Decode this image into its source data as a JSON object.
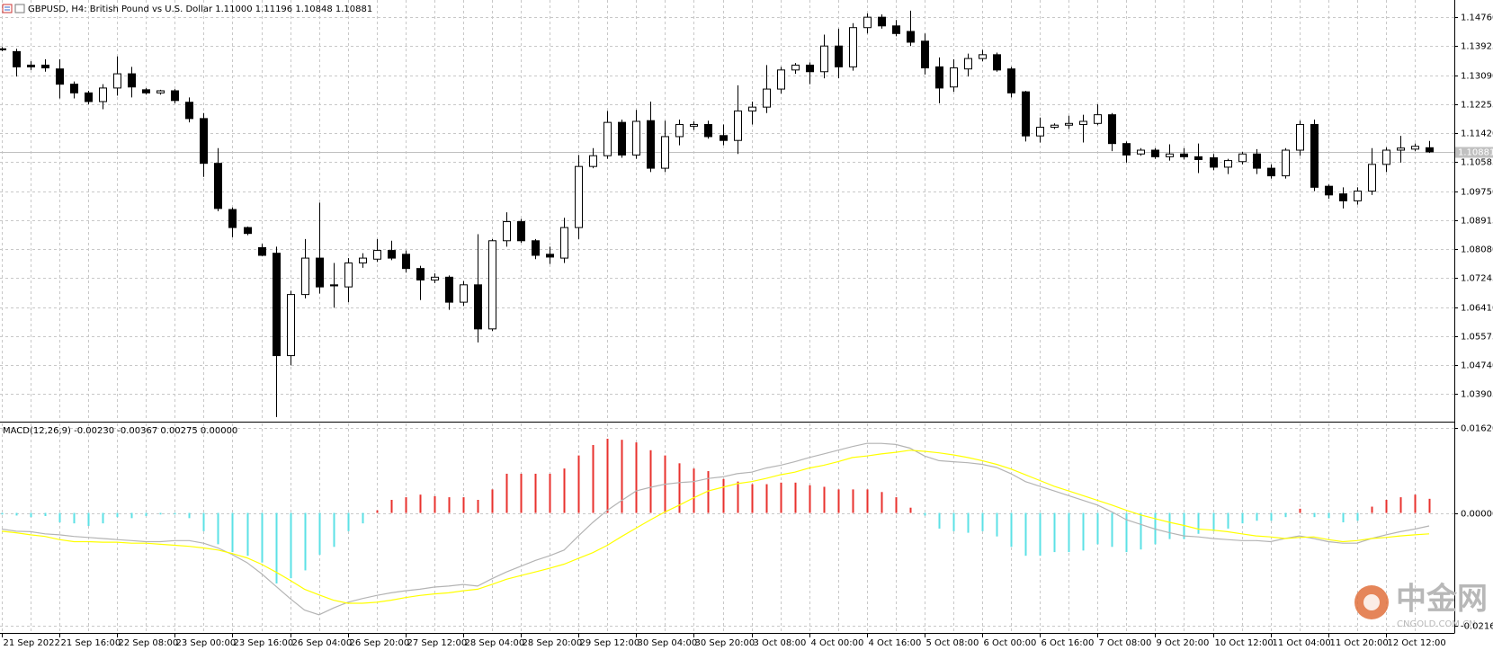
{
  "chart_data": [
    {
      "type": "candlestick",
      "title": "GBPUSD, H4:  British Pound vs U.S. Dollar  1.11000 1.11196 1.10848 1.10881",
      "categories": [
        "21 Sep 2022",
        null,
        null,
        null,
        "21 Sep 16:00",
        null,
        null,
        null,
        "22 Sep 08:00",
        null,
        null,
        null,
        "23 Sep 00:00",
        null,
        null,
        null,
        "23 Sep 16:00",
        null,
        null,
        null,
        "26 Sep 04:00",
        null,
        null,
        null,
        "26 Sep 20:00",
        null,
        null,
        null,
        "27 Sep 12:00",
        null,
        null,
        null,
        "28 Sep 04:00",
        null,
        null,
        null,
        "28 Sep 20:00",
        null,
        null,
        null,
        "29 Sep 12:00",
        null,
        null,
        null,
        "30 Sep 04:00",
        null,
        null,
        null,
        "30 Sep 20:00",
        null,
        null,
        null,
        "3 Oct 08:00",
        null,
        null,
        null,
        "4 Oct 00:00",
        null,
        null,
        null,
        "4 Oct 16:00",
        null,
        null,
        null,
        "5 Oct 08:00",
        null,
        null,
        null,
        "6 Oct 00:00",
        null,
        null,
        null,
        "6 Oct 16:00",
        null,
        null,
        null,
        "7 Oct 08:00",
        null,
        null,
        null,
        "9 Oct 20:00",
        null,
        null,
        null,
        "10 Oct 12:00",
        null,
        null,
        null,
        "11 Oct 04:00",
        null,
        null,
        null,
        "11 Oct 20:00",
        null,
        null,
        null,
        "12 Oct 12:00",
        null,
        null,
        null
      ],
      "open": [
        1.1385,
        1.1377,
        1.1338,
        1.1338,
        1.1327,
        1.1283,
        1.1258,
        1.1233,
        1.1272,
        1.1313,
        1.1267,
        1.1258,
        1.1264,
        1.1231,
        1.1184,
        1.1055,
        1.0922,
        1.087,
        1.0812,
        1.0796,
        1.0501,
        1.0677,
        1.0782,
        1.0705,
        1.0699,
        1.0768,
        1.0779,
        1.0804,
        1.0793,
        1.0752,
        1.0719,
        1.0727,
        1.0655,
        1.0705,
        1.0578,
        1.0832,
        1.0887,
        1.0832,
        1.0793,
        1.0782,
        1.087,
        1.1046,
        1.1077,
        1.1173,
        1.1079,
        1.1178,
        1.1041,
        1.1132,
        1.1162,
        1.1167,
        1.1135,
        1.1121,
        1.1206,
        1.1217,
        1.1269,
        1.1324,
        1.1338,
        1.1319,
        1.1393,
        1.1333,
        1.1446,
        1.1476,
        1.1451,
        1.1435,
        1.1407,
        1.1333,
        1.1275,
        1.1327,
        1.1357,
        1.1368,
        1.1327,
        1.1261,
        1.1134,
        1.1159,
        1.1165,
        1.1167,
        1.117,
        1.1195,
        1.1112,
        1.1082,
        1.1093,
        1.1074,
        1.1082,
        1.1074,
        1.1071,
        1.1044,
        1.106,
        1.1082,
        1.1041,
        1.1019,
        1.1093,
        1.1167,
        1.0989,
        1.0967,
        1.0947,
        1.0975,
        1.1052,
        1.1093,
        1.1096,
        1.11
      ],
      "high": [
        1.139,
        1.1385,
        1.1349,
        1.1355,
        1.1355,
        1.1291,
        1.1264,
        1.1283,
        1.1363,
        1.1333,
        1.1272,
        1.1267,
        1.1269,
        1.1245,
        1.12,
        1.1099,
        1.0928,
        1.0873,
        1.0823,
        1.0815,
        1.0688,
        1.0837,
        1.0942,
        1.0768,
        1.0782,
        1.0796,
        1.0837,
        1.0832,
        1.0804,
        1.076,
        1.0738,
        1.0732,
        1.0716,
        1.0851,
        1.0837,
        1.0914,
        1.0895,
        1.0837,
        1.0815,
        1.0898,
        1.1079,
        1.1099,
        1.1206,
        1.1181,
        1.1209,
        1.1233,
        1.1178,
        1.1181,
        1.1176,
        1.1178,
        1.1167,
        1.128,
        1.1233,
        1.1338,
        1.1333,
        1.1344,
        1.1346,
        1.1426,
        1.1443,
        1.1459,
        1.1487,
        1.1484,
        1.1468,
        1.1495,
        1.1429,
        1.136,
        1.1355,
        1.1371,
        1.1382,
        1.1374,
        1.1333,
        1.1264,
        1.1187,
        1.117,
        1.1192,
        1.1195,
        1.1225,
        1.12,
        1.1118,
        1.1099,
        1.1099,
        1.111,
        1.1099,
        1.1112,
        1.1082,
        1.1068,
        1.1088,
        1.1096,
        1.1052,
        1.1099,
        1.1178,
        1.1181,
        1.0994,
        1.0986,
        1.0986,
        1.1099,
        1.1101,
        1.1134,
        1.1112,
        1.11196
      ],
      "low": [
        1.1378,
        1.1305,
        1.1324,
        1.1319,
        1.1242,
        1.1242,
        1.1225,
        1.1211,
        1.125,
        1.1245,
        1.1253,
        1.1253,
        1.1228,
        1.1173,
        1.1016,
        1.0917,
        1.0842,
        1.0848,
        1.0787,
        1.0324,
        1.0473,
        1.0666,
        1.068,
        1.0639,
        1.0655,
        1.0754,
        1.0771,
        1.0776,
        1.074,
        1.0661,
        1.071,
        1.0633,
        1.0644,
        1.0539,
        1.0572,
        1.0815,
        1.0826,
        1.0779,
        1.0765,
        1.0768,
        1.0837,
        1.1041,
        1.1068,
        1.1071,
        1.1068,
        1.103,
        1.103,
        1.1107,
        1.1151,
        1.1126,
        1.1107,
        1.1082,
        1.1167,
        1.12,
        1.1256,
        1.1313,
        1.1283,
        1.13,
        1.13,
        1.1322,
        1.1429,
        1.1443,
        1.1421,
        1.1393,
        1.1311,
        1.1228,
        1.1261,
        1.1305,
        1.1349,
        1.1319,
        1.1245,
        1.1118,
        1.1115,
        1.1154,
        1.1154,
        1.1115,
        1.1165,
        1.109,
        1.1057,
        1.1077,
        1.1068,
        1.1063,
        1.1066,
        1.1027,
        1.1035,
        1.1024,
        1.1052,
        1.1024,
        1.1011,
        1.1011,
        1.1077,
        1.0975,
        1.0953,
        1.0925,
        1.0936,
        1.0964,
        1.103,
        1.1057,
        1.109,
        1.10848
      ],
      "close": [
        1.1382,
        1.1333,
        1.1333,
        1.133,
        1.1283,
        1.1258,
        1.1233,
        1.1272,
        1.1313,
        1.1275,
        1.1258,
        1.1264,
        1.1236,
        1.1184,
        1.1055,
        1.0925,
        1.087,
        1.0853,
        1.079,
        1.0501,
        1.0677,
        1.0782,
        1.0699,
        1.0702,
        1.0768,
        1.0782,
        1.0804,
        1.0782,
        1.0752,
        1.0719,
        1.0727,
        1.0655,
        1.0705,
        1.0578,
        1.0832,
        1.0887,
        1.0832,
        1.079,
        1.0785,
        1.087,
        1.1046,
        1.1077,
        1.1173,
        1.1079,
        1.1176,
        1.1041,
        1.1132,
        1.1167,
        1.1167,
        1.1132,
        1.1121,
        1.1206,
        1.1217,
        1.1269,
        1.1324,
        1.1338,
        1.1319,
        1.1393,
        1.1333,
        1.1446,
        1.1476,
        1.1451,
        1.1429,
        1.1404,
        1.133,
        1.1272,
        1.133,
        1.1357,
        1.1368,
        1.1324,
        1.1258,
        1.1134,
        1.1159,
        1.1165,
        1.117,
        1.1176,
        1.1195,
        1.1112,
        1.1079,
        1.1093,
        1.1074,
        1.1082,
        1.1074,
        1.1066,
        1.1044,
        1.1063,
        1.1082,
        1.1041,
        1.1019,
        1.1093,
        1.1167,
        1.0986,
        1.0964,
        1.0947,
        1.0975,
        1.1052,
        1.1093,
        1.1099,
        1.1104,
        1.10881
      ],
      "up_color": "#ffffff",
      "down_color": "#000000",
      "outline_color": "#000000",
      "ylim": [
        1.03134,
        1.15256
      ],
      "yticks": [
        {
          "value": 1.1476,
          "label": "1.14760"
        },
        {
          "value": 1.13925,
          "label": "1.13925"
        },
        {
          "value": 1.1309,
          "label": "1.13090"
        },
        {
          "value": 1.12255,
          "label": "1.12255"
        },
        {
          "value": 1.1142,
          "label": "1.11420"
        },
        {
          "value": 1.10585,
          "label": "1.10585"
        },
        {
          "value": 1.0975,
          "label": "1.09750"
        },
        {
          "value": 1.08915,
          "label": "1.08915"
        },
        {
          "value": 1.0808,
          "label": "1.08080"
        },
        {
          "value": 1.07245,
          "label": "1.07245"
        },
        {
          "value": 1.0641,
          "label": "1.06410"
        },
        {
          "value": 1.05575,
          "label": "1.05575"
        },
        {
          "value": 1.0474,
          "label": "1.04740"
        },
        {
          "value": 1.03905,
          "label": "1.03905"
        }
      ],
      "last_price": 1.10881,
      "grid": true
    },
    {
      "type": "macd",
      "title": "MACD(12,26,9) -0.00230 -0.00367 0.00275 0.00000",
      "values": [
        -0.0003,
        -0.0005,
        -0.0008,
        -0.0006,
        -0.0018,
        -0.002,
        -0.0025,
        -0.002,
        -0.0008,
        -0.001,
        -0.0006,
        -0.0003,
        -0.0003,
        -0.001,
        -0.0035,
        -0.006,
        -0.0075,
        -0.0082,
        -0.0095,
        -0.0135,
        -0.0125,
        -0.011,
        -0.008,
        -0.0065,
        -0.0035,
        -0.002,
        0.0005,
        0.0025,
        0.003,
        0.0035,
        0.0032,
        0.003,
        0.003,
        0.0025,
        0.0045,
        0.0075,
        0.0075,
        0.0075,
        0.0075,
        0.0085,
        0.011,
        0.013,
        0.0142,
        0.014,
        0.0135,
        0.012,
        0.011,
        0.0095,
        0.0085,
        0.008,
        0.0065,
        0.006,
        0.0055,
        0.0055,
        0.0058,
        0.0058,
        0.0053,
        0.005,
        0.0045,
        0.0045,
        0.0045,
        0.004,
        0.003,
        0.001,
        -0.0005,
        -0.003,
        -0.0035,
        -0.0038,
        -0.0035,
        -0.0045,
        -0.0065,
        -0.0082,
        -0.0082,
        -0.0075,
        -0.0075,
        -0.0072,
        -0.006,
        -0.0065,
        -0.0075,
        -0.007,
        -0.006,
        -0.005,
        -0.005,
        -0.004,
        -0.0035,
        -0.003,
        -0.002,
        -0.0015,
        -0.0015,
        -0.0008,
        0.0008,
        -0.0008,
        -0.001,
        -0.0018,
        -0.0015,
        0.0012,
        0.0025,
        0.003,
        0.0035,
        0.0027
      ],
      "positive_color": "#e8322e",
      "negative_color": "#5ce1e6",
      "lines": [
        {
          "color": "#b4b4b4",
          "values": [
            -0.0031,
            -0.0035,
            -0.0036,
            -0.004,
            -0.0042,
            -0.0045,
            -0.0047,
            -0.0049,
            -0.0051,
            -0.0053,
            -0.0055,
            -0.0055,
            -0.0053,
            -0.0053,
            -0.0058,
            -0.0067,
            -0.008,
            -0.0095,
            -0.0116,
            -0.014,
            -0.0164,
            -0.0186,
            -0.0195,
            -0.0182,
            -0.0171,
            -0.0164,
            -0.0158,
            -0.0153,
            -0.0149,
            -0.0146,
            -0.0142,
            -0.014,
            -0.0137,
            -0.014,
            -0.0126,
            -0.0113,
            -0.0102,
            -0.0091,
            -0.0082,
            -0.0071,
            -0.0044,
            -0.0018,
            0.0005,
            0.0024,
            0.0042,
            0.0049,
            0.0055,
            0.0058,
            0.006,
            0.0066,
            0.0069,
            0.0075,
            0.0078,
            0.0086,
            0.0091,
            0.0098,
            0.0106,
            0.0113,
            0.012,
            0.0127,
            0.0133,
            0.0133,
            0.0131,
            0.0124,
            0.0109,
            0.01,
            0.0098,
            0.0096,
            0.0093,
            0.0087,
            0.0075,
            0.006,
            0.0051,
            0.0042,
            0.0033,
            0.0024,
            0.0015,
            0.0002,
            -0.0013,
            -0.0022,
            -0.0031,
            -0.0038,
            -0.0044,
            -0.0046,
            -0.0049,
            -0.0051,
            -0.0053,
            -0.0053,
            -0.0055,
            -0.0049,
            -0.0044,
            -0.0049,
            -0.0055,
            -0.0058,
            -0.0058,
            -0.0049,
            -0.0042,
            -0.0036,
            -0.0031,
            -0.0025
          ]
        },
        {
          "color": "#ffff00",
          "values": [
            -0.0035,
            -0.0038,
            -0.0042,
            -0.0045,
            -0.0051,
            -0.0055,
            -0.0055,
            -0.0056,
            -0.0056,
            -0.0058,
            -0.0058,
            -0.006,
            -0.0062,
            -0.0064,
            -0.0067,
            -0.0071,
            -0.0078,
            -0.0086,
            -0.0098,
            -0.0113,
            -0.0129,
            -0.0146,
            -0.0157,
            -0.0167,
            -0.0173,
            -0.0173,
            -0.0171,
            -0.0167,
            -0.0162,
            -0.0158,
            -0.0155,
            -0.0153,
            -0.0149,
            -0.0146,
            -0.0137,
            -0.0127,
            -0.012,
            -0.0113,
            -0.0106,
            -0.0098,
            -0.0087,
            -0.0076,
            -0.0062,
            -0.0045,
            -0.0029,
            -0.0013,
            0.0002,
            0.0015,
            0.0029,
            0.0042,
            0.0049,
            0.0056,
            0.006,
            0.0066,
            0.0073,
            0.0078,
            0.0086,
            0.0091,
            0.0098,
            0.0106,
            0.0109,
            0.0113,
            0.0116,
            0.012,
            0.0118,
            0.0115,
            0.0111,
            0.0106,
            0.01,
            0.0093,
            0.0084,
            0.0073,
            0.0062,
            0.0051,
            0.0042,
            0.0033,
            0.0024,
            0.0015,
            0.0005,
            -0.0004,
            -0.0011,
            -0.0018,
            -0.0024,
            -0.0031,
            -0.0033,
            -0.0036,
            -0.004,
            -0.0044,
            -0.0046,
            -0.0049,
            -0.0047,
            -0.0046,
            -0.0051,
            -0.0055,
            -0.0053,
            -0.0049,
            -0.0047,
            -0.0044,
            -0.0042,
            -0.004
          ]
        }
      ],
      "ylim": [
        -0.0228,
        0.0173
      ],
      "yticks": [
        {
          "value": 0.0162,
          "label": "0.01620"
        },
        {
          "value": 0,
          "label": "0.00000"
        },
        {
          "value": -0.0216,
          "label": "-0.02160"
        }
      ],
      "grid": true
    }
  ],
  "watermark": {
    "brand": "中金网",
    "site": "CNGOLD.COM.CN"
  }
}
